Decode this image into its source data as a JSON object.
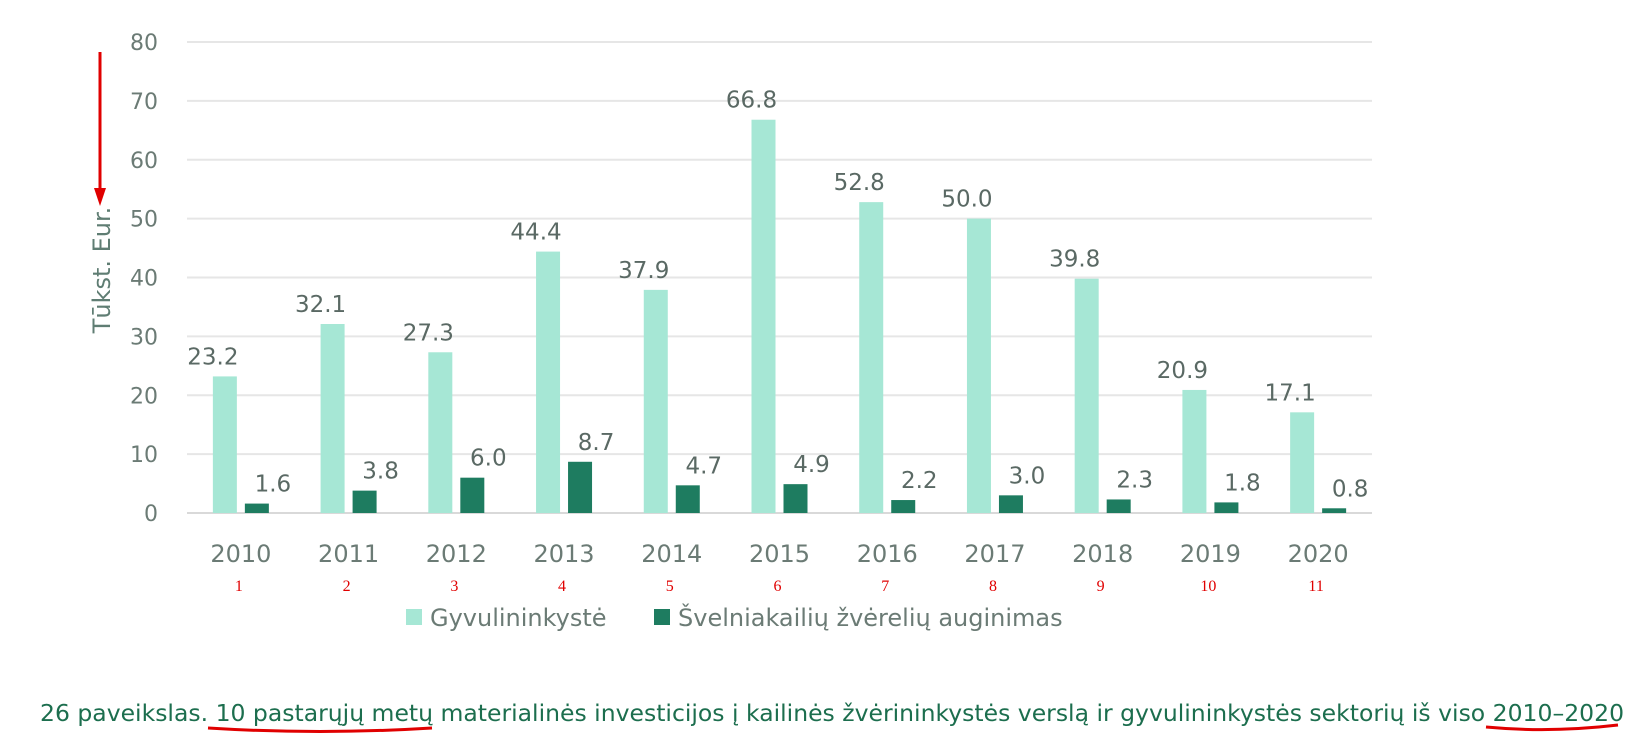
{
  "chart_data": {
    "type": "bar",
    "categories": [
      "2010",
      "2011",
      "2012",
      "2013",
      "2014",
      "2015",
      "2016",
      "2017",
      "2018",
      "2019",
      "2020"
    ],
    "category_indices": [
      "1",
      "2",
      "3",
      "4",
      "5",
      "6",
      "7",
      "8",
      "9",
      "10",
      "11"
    ],
    "series": [
      {
        "name": "Gyvulininkystė",
        "color": "#a6e7d5",
        "values": [
          23.2,
          32.1,
          27.3,
          44.4,
          37.9,
          66.8,
          52.8,
          50.0,
          39.8,
          20.9,
          17.1
        ],
        "labels": [
          "23.2",
          "32.1",
          "27.3",
          "44.4",
          "37.9",
          "66.8",
          "52.8",
          "50.0",
          "39.8",
          "20.9",
          "17.1"
        ]
      },
      {
        "name": "Švelniakailių žvėrelių auginimas",
        "color": "#1e7c60",
        "values": [
          1.6,
          3.8,
          6.0,
          8.7,
          4.7,
          4.9,
          2.2,
          3.0,
          2.3,
          1.8,
          0.8
        ],
        "labels": [
          "1.6",
          "3.8",
          "6.0",
          "8.7",
          "4.7",
          "4.9",
          "2.2",
          "3.0",
          "2.3",
          "1.8",
          "0.8"
        ]
      }
    ],
    "ylabel": "Tūkst. Eur.",
    "ylim": [
      0,
      80
    ],
    "yticks": [
      "0",
      "10",
      "20",
      "30",
      "40",
      "50",
      "60",
      "70",
      "80"
    ],
    "grid": true,
    "legend_position": "bottom",
    "annotation_color": "#e00000"
  },
  "caption": {
    "lead": "26 paveikslas. ",
    "highlight1": "10 pastarųjų metų",
    "middle": " materialinės investicijos į kailinės žvėrininkystės verslą ir gyvulininkystės sektorių iš viso ",
    "highlight2": "2010–2020"
  }
}
